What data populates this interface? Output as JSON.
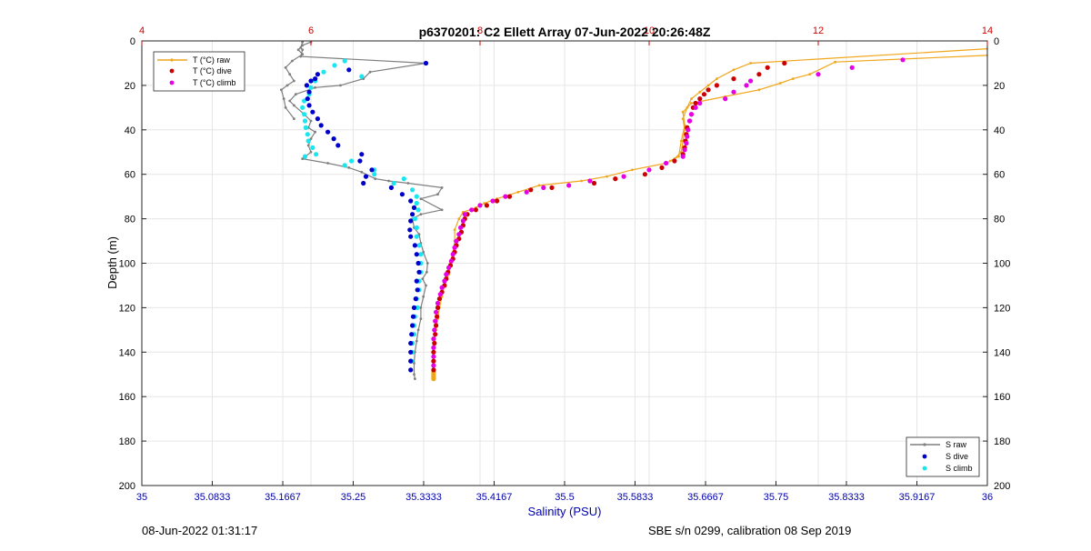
{
  "title": "p6370201: C2 Ellett Array 07-Jun-2022 20:26:48Z",
  "footer_left": "08-Jun-2022 01:31:17",
  "footer_right": "SBE s/n 0299, calibration 08 Sep 2019",
  "colors": {
    "salinity_axis": "#0000b0",
    "temperature_axis": "#d00000",
    "s_raw": "#7f7f7f",
    "s_dive": "#0000cc",
    "s_climb": "#19e6ee",
    "t_raw": "#f0a61a",
    "t_dive": "#cc0000",
    "t_climb": "#e600e6",
    "grid": "#e6e6e6"
  },
  "chart_data": {
    "type": "scatter",
    "title": "p6370201: C2 Ellett Array 07-Jun-2022 20:26:48Z",
    "xlabel": "Salinity (PSU)",
    "ylabel": "Depth (m)",
    "xlim": [
      35,
      36
    ],
    "x2lim": [
      4,
      14
    ],
    "ylim": [
      0,
      200
    ],
    "y_reversed": true,
    "grid": true,
    "x_ticks": [
      "35",
      "35.0833",
      "35.1667",
      "35.25",
      "35.3333",
      "35.4167",
      "35.5",
      "35.5833",
      "35.6667",
      "35.75",
      "35.8333",
      "35.9167",
      "36"
    ],
    "x_tick_values": [
      35,
      35.0833,
      35.1667,
      35.25,
      35.3333,
      35.4167,
      35.5,
      35.5833,
      35.6667,
      35.75,
      35.8333,
      35.9167,
      36
    ],
    "x2_ticks": [
      "4",
      "6",
      "8",
      "10",
      "12",
      "14"
    ],
    "x2_tick_values": [
      4,
      6,
      8,
      10,
      12,
      14
    ],
    "y_ticks": [
      "0",
      "20",
      "40",
      "60",
      "80",
      "100",
      "120",
      "140",
      "160",
      "180",
      "200"
    ],
    "y_tick_values": [
      0,
      20,
      40,
      60,
      80,
      100,
      120,
      140,
      160,
      180,
      200
    ],
    "legend_temperature": {
      "placement": "top-left",
      "entries": [
        "T (°C) raw",
        "T (°C) dive",
        "T (°C) climb"
      ]
    },
    "legend_salinity": {
      "placement": "bottom-right",
      "entries": [
        "S raw",
        "S dive",
        "S climb"
      ]
    },
    "salinity_raw": [
      [
        35.19,
        0.5
      ],
      [
        35.188,
        3
      ],
      [
        35.19,
        4
      ],
      [
        35.188,
        7
      ],
      [
        35.336,
        10
      ],
      [
        35.27,
        14
      ],
      [
        35.262,
        17
      ],
      [
        35.235,
        20
      ],
      [
        35.205,
        21
      ],
      [
        35.182,
        24
      ],
      [
        35.175,
        27
      ],
      [
        35.18,
        29
      ],
      [
        35.192,
        33
      ],
      [
        35.2,
        36
      ],
      [
        35.197,
        39
      ],
      [
        35.205,
        41
      ],
      [
        35.2,
        44
      ],
      [
        35.197,
        47
      ],
      [
        35.2,
        50
      ],
      [
        35.19,
        53
      ],
      [
        35.22,
        55
      ],
      [
        35.245,
        57
      ],
      [
        35.26,
        59
      ],
      [
        35.276,
        62
      ],
      [
        35.292,
        63
      ],
      [
        35.315,
        64
      ],
      [
        35.355,
        66
      ],
      [
        35.35,
        69
      ],
      [
        35.33,
        71
      ],
      [
        35.355,
        76
      ],
      [
        35.33,
        78
      ],
      [
        35.32,
        80
      ],
      [
        35.322,
        84
      ],
      [
        35.328,
        87
      ],
      [
        35.33,
        91
      ],
      [
        35.333,
        95
      ],
      [
        35.338,
        100
      ],
      [
        35.337,
        104
      ],
      [
        35.332,
        107
      ],
      [
        35.336,
        110
      ],
      [
        35.333,
        115
      ],
      [
        35.33,
        120
      ],
      [
        35.33,
        125
      ],
      [
        35.327,
        130
      ],
      [
        35.325,
        135
      ],
      [
        35.323,
        140
      ],
      [
        35.322,
        145
      ],
      [
        35.322,
        150
      ],
      [
        35.323,
        152
      ]
    ],
    "salinity_raw_branch": [
      [
        35.2,
        0.5
      ],
      [
        35.19,
        2
      ],
      [
        35.185,
        4
      ],
      [
        35.19,
        6
      ],
      [
        35.178,
        9
      ],
      [
        35.17,
        12
      ],
      [
        35.175,
        15
      ],
      [
        35.18,
        18
      ],
      [
        35.172,
        20
      ],
      [
        35.165,
        22
      ],
      [
        35.168,
        26
      ],
      [
        35.17,
        30
      ],
      [
        35.18,
        35
      ]
    ],
    "salinity_dive": [
      [
        35.336,
        10
      ],
      [
        35.245,
        13
      ],
      [
        35.208,
        15
      ],
      [
        35.205,
        17
      ],
      [
        35.2,
        18
      ],
      [
        35.195,
        20
      ],
      [
        35.198,
        23
      ],
      [
        35.196,
        26
      ],
      [
        35.198,
        29
      ],
      [
        35.202,
        32
      ],
      [
        35.208,
        35
      ],
      [
        35.212,
        38
      ],
      [
        35.22,
        41
      ],
      [
        35.227,
        44
      ],
      [
        35.232,
        47
      ],
      [
        35.26,
        51
      ],
      [
        35.258,
        54
      ],
      [
        35.272,
        58
      ],
      [
        35.265,
        61
      ],
      [
        35.262,
        64
      ],
      [
        35.295,
        66
      ],
      [
        35.308,
        69
      ],
      [
        35.318,
        72
      ],
      [
        35.322,
        75
      ],
      [
        35.32,
        78
      ],
      [
        35.318,
        81
      ],
      [
        35.317,
        85
      ],
      [
        35.318,
        88
      ],
      [
        35.323,
        92
      ],
      [
        35.325,
        96
      ],
      [
        35.327,
        100
      ],
      [
        35.328,
        104
      ],
      [
        35.325,
        108
      ],
      [
        35.326,
        112
      ],
      [
        35.324,
        116
      ],
      [
        35.322,
        120
      ],
      [
        35.321,
        124
      ],
      [
        35.32,
        128
      ],
      [
        35.319,
        132
      ],
      [
        35.318,
        136
      ],
      [
        35.318,
        140
      ],
      [
        35.318,
        144
      ],
      [
        35.318,
        148
      ]
    ],
    "salinity_climb": [
      [
        35.24,
        9
      ],
      [
        35.228,
        11
      ],
      [
        35.215,
        14
      ],
      [
        35.26,
        16
      ],
      [
        35.205,
        18
      ],
      [
        35.2,
        21
      ],
      [
        35.198,
        24
      ],
      [
        35.192,
        27
      ],
      [
        35.19,
        30
      ],
      [
        35.192,
        33
      ],
      [
        35.193,
        36
      ],
      [
        35.194,
        39
      ],
      [
        35.196,
        42
      ],
      [
        35.197,
        45
      ],
      [
        35.202,
        48
      ],
      [
        35.206,
        51
      ],
      [
        35.193,
        52
      ],
      [
        35.248,
        54
      ],
      [
        35.24,
        56
      ],
      [
        35.275,
        58
      ],
      [
        35.275,
        60
      ],
      [
        35.31,
        62
      ],
      [
        35.298,
        64
      ],
      [
        35.32,
        67
      ],
      [
        35.325,
        70
      ],
      [
        35.325,
        73
      ],
      [
        35.327,
        76
      ],
      [
        35.323,
        80
      ],
      [
        35.325,
        84
      ],
      [
        35.325,
        88
      ],
      [
        35.328,
        92
      ],
      [
        35.33,
        96
      ],
      [
        35.33,
        100
      ],
      [
        35.33,
        104
      ],
      [
        35.328,
        108
      ],
      [
        35.328,
        112
      ],
      [
        35.325,
        116
      ],
      [
        35.326,
        120
      ],
      [
        35.323,
        124
      ],
      [
        35.322,
        128
      ],
      [
        35.322,
        132
      ],
      [
        35.32,
        136
      ],
      [
        35.32,
        140
      ],
      [
        35.319,
        144
      ]
    ],
    "temperature_raw": [
      [
        14.0,
        3.5
      ],
      [
        11.2,
        10
      ],
      [
        11.0,
        13
      ],
      [
        10.8,
        17
      ],
      [
        10.7,
        20
      ],
      [
        10.6,
        23
      ],
      [
        10.5,
        26
      ],
      [
        10.45,
        30
      ],
      [
        10.4,
        35
      ],
      [
        10.42,
        40
      ],
      [
        10.4,
        45
      ],
      [
        10.38,
        50
      ],
      [
        10.3,
        53
      ],
      [
        10.2,
        55
      ],
      [
        9.8,
        58
      ],
      [
        9.5,
        61
      ],
      [
        9.2,
        63
      ],
      [
        8.7,
        65
      ],
      [
        8.45,
        68
      ],
      [
        8.2,
        71
      ],
      [
        8.05,
        73
      ],
      [
        7.95,
        75
      ],
      [
        7.8,
        77
      ],
      [
        7.75,
        80
      ],
      [
        7.7,
        85
      ],
      [
        7.7,
        90
      ],
      [
        7.68,
        95
      ],
      [
        7.65,
        100
      ],
      [
        7.63,
        105
      ],
      [
        7.58,
        110
      ],
      [
        7.55,
        115
      ],
      [
        7.52,
        120
      ],
      [
        7.5,
        125
      ],
      [
        7.48,
        130
      ],
      [
        7.46,
        135
      ],
      [
        7.45,
        140
      ],
      [
        7.45,
        145
      ],
      [
        7.45,
        150
      ],
      [
        7.45,
        151.5
      ]
    ],
    "temperature_raw_branch": [
      [
        14.0,
        6.5
      ],
      [
        12.2,
        9.5
      ],
      [
        11.9,
        15
      ],
      [
        11.7,
        17
      ],
      [
        11.55,
        19
      ],
      [
        11.3,
        22
      ],
      [
        10.9,
        25
      ],
      [
        10.5,
        28
      ],
      [
        10.4,
        32
      ],
      [
        10.42,
        38
      ],
      [
        10.38,
        45
      ],
      [
        10.35,
        52
      ],
      [
        10.25,
        54
      ]
    ],
    "temperature_dive": [
      [
        11.6,
        10
      ],
      [
        11.4,
        12
      ],
      [
        11.3,
        15
      ],
      [
        11.0,
        17
      ],
      [
        10.8,
        20
      ],
      [
        10.7,
        22
      ],
      [
        10.65,
        24
      ],
      [
        10.6,
        26
      ],
      [
        10.55,
        28
      ],
      [
        10.52,
        30
      ],
      [
        10.5,
        33
      ],
      [
        10.48,
        36
      ],
      [
        10.45,
        39
      ],
      [
        10.44,
        42
      ],
      [
        10.43,
        45
      ],
      [
        10.42,
        48
      ],
      [
        10.4,
        51
      ],
      [
        10.3,
        54
      ],
      [
        10.15,
        57
      ],
      [
        9.95,
        60
      ],
      [
        9.6,
        62
      ],
      [
        9.35,
        64
      ],
      [
        8.85,
        66
      ],
      [
        8.6,
        67
      ],
      [
        8.35,
        70
      ],
      [
        8.2,
        72
      ],
      [
        8.08,
        74
      ],
      [
        7.95,
        76
      ],
      [
        7.85,
        78
      ],
      [
        7.82,
        80
      ],
      [
        7.8,
        83
      ],
      [
        7.78,
        86
      ],
      [
        7.75,
        89
      ],
      [
        7.72,
        92
      ],
      [
        7.7,
        95
      ],
      [
        7.68,
        98
      ],
      [
        7.65,
        101
      ],
      [
        7.62,
        104
      ],
      [
        7.6,
        107
      ],
      [
        7.58,
        110
      ],
      [
        7.55,
        113
      ],
      [
        7.52,
        116
      ],
      [
        7.5,
        120
      ],
      [
        7.49,
        124
      ],
      [
        7.48,
        128
      ],
      [
        7.47,
        132
      ],
      [
        7.46,
        136
      ],
      [
        7.45,
        140
      ],
      [
        7.45,
        144
      ],
      [
        7.45,
        148
      ]
    ],
    "temperature_climb": [
      [
        13.0,
        8.5
      ],
      [
        12.4,
        12
      ],
      [
        12.0,
        15
      ],
      [
        11.2,
        18
      ],
      [
        11.15,
        20
      ],
      [
        11.0,
        23
      ],
      [
        10.9,
        26
      ],
      [
        10.6,
        28
      ],
      [
        10.55,
        30
      ],
      [
        10.5,
        33
      ],
      [
        10.48,
        36
      ],
      [
        10.46,
        40
      ],
      [
        10.45,
        43
      ],
      [
        10.44,
        46
      ],
      [
        10.42,
        49
      ],
      [
        10.4,
        52
      ],
      [
        10.2,
        55
      ],
      [
        10.0,
        58
      ],
      [
        9.7,
        61
      ],
      [
        9.3,
        63
      ],
      [
        9.05,
        65
      ],
      [
        8.75,
        66
      ],
      [
        8.55,
        68
      ],
      [
        8.3,
        70
      ],
      [
        8.15,
        72
      ],
      [
        8.0,
        74
      ],
      [
        7.9,
        76
      ],
      [
        7.82,
        78
      ],
      [
        7.8,
        81
      ],
      [
        7.77,
        84
      ],
      [
        7.75,
        87
      ],
      [
        7.72,
        90
      ],
      [
        7.7,
        93
      ],
      [
        7.68,
        96
      ],
      [
        7.66,
        99
      ],
      [
        7.63,
        102
      ],
      [
        7.6,
        105
      ],
      [
        7.58,
        108
      ],
      [
        7.55,
        111
      ],
      [
        7.53,
        114
      ],
      [
        7.5,
        118
      ],
      [
        7.48,
        122
      ],
      [
        7.47,
        126
      ],
      [
        7.46,
        130
      ],
      [
        7.45,
        134
      ],
      [
        7.45,
        138
      ],
      [
        7.45,
        142
      ],
      [
        7.45,
        146
      ]
    ],
    "temperature_raw_tail": [
      [
        7.45,
        149
      ],
      [
        7.45,
        150
      ],
      [
        7.45,
        151
      ],
      [
        7.45,
        152
      ]
    ]
  }
}
